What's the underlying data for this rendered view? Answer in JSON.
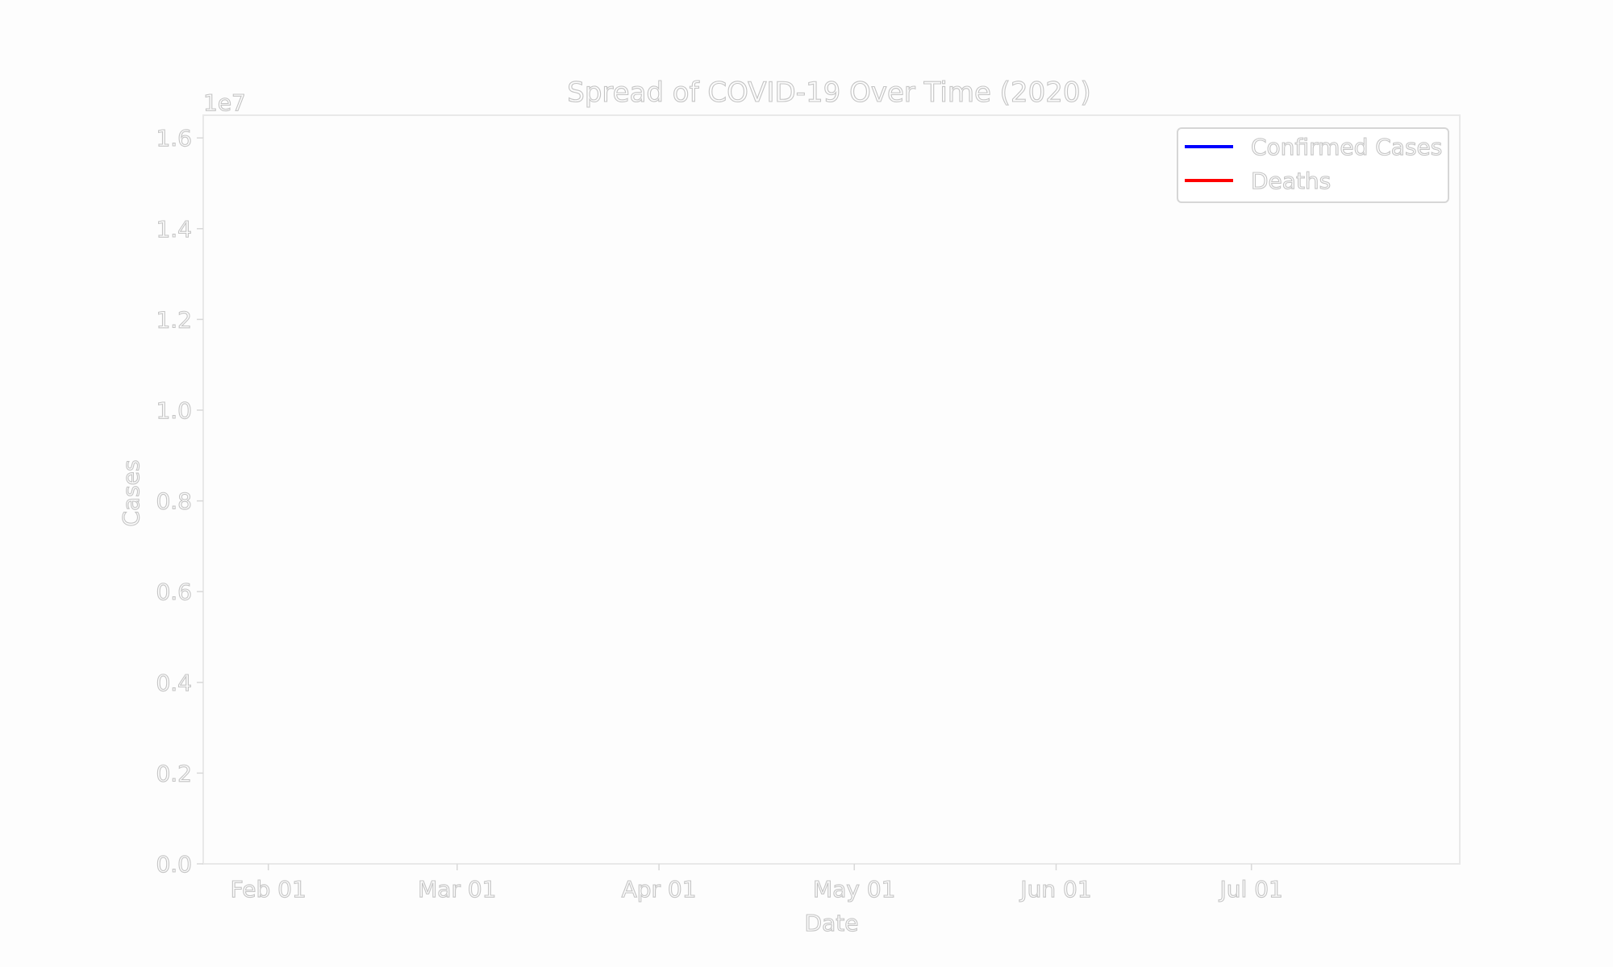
{
  "chart_data": {
    "type": "line",
    "title": "Spread of COVID-19 Over Time (2020)",
    "xlabel": "Date",
    "ylabel": "Cases",
    "y_offset_label": "1e7",
    "x_tick_labels": [
      "Feb 01",
      "Mar 01",
      "Apr 01",
      "May 01",
      "Jun 01",
      "Jul 01"
    ],
    "x_tick_dates": [
      "2020-02-01",
      "2020-03-01",
      "2020-04-01",
      "2020-05-01",
      "2020-06-01",
      "2020-07-01"
    ],
    "xlim": [
      "2020-01-22",
      "2020-08-02"
    ],
    "y_tick_labels": [
      "0.0",
      "0.2",
      "0.4",
      "0.6",
      "0.8",
      "1.0",
      "1.2",
      "1.4",
      "1.6"
    ],
    "y_tick_values": [
      0,
      0.2,
      0.4,
      0.6,
      0.8,
      1.0,
      1.2,
      1.4,
      1.6
    ],
    "ylim": [
      0,
      1.65
    ],
    "y_multiplier": 10000000,
    "grid": false,
    "legend_position": "top-right",
    "series": [
      {
        "name": "Confirmed Cases",
        "color": "#0000ff",
        "x": [],
        "y": []
      },
      {
        "name": "Deaths",
        "color": "#ff0000",
        "x": [],
        "y": []
      }
    ]
  }
}
